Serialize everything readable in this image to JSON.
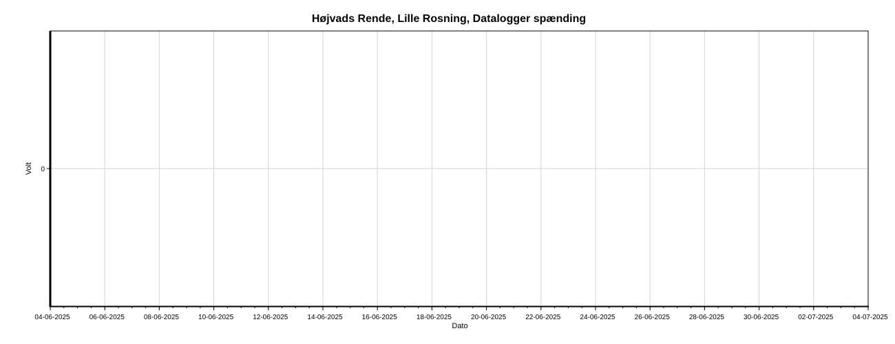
{
  "chart_data": {
    "type": "line",
    "title": "Højvads Rende, Lille Rosning, Datalogger spænding",
    "xlabel": "Dato",
    "ylabel": "Volt",
    "x_ticks": [
      "04-06-2025",
      "06-06-2025",
      "08-06-2025",
      "10-06-2025",
      "12-06-2025",
      "14-06-2025",
      "16-06-2025",
      "18-06-2025",
      "20-06-2025",
      "22-06-2025",
      "24-06-2025",
      "26-06-2025",
      "28-06-2025",
      "30-06-2025",
      "02-07-2025",
      "04-07-2025"
    ],
    "xlim": [
      "04-06-2025",
      "04-07-2025"
    ],
    "y_ticks": [
      0
    ],
    "ylim": [
      -1,
      1
    ],
    "series": [],
    "grid": true
  }
}
